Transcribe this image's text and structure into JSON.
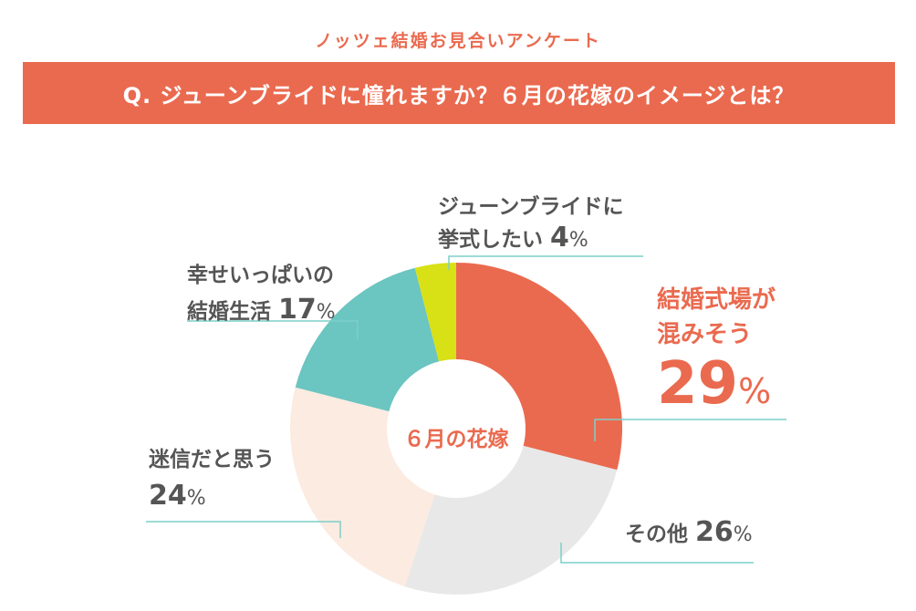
{
  "header": {
    "survey_title": "ノッツェ結婚お見合いアンケート",
    "question": "Q. ジューンブライドに憧れますか？６月の花嫁のイメージとは？"
  },
  "chart_data": {
    "type": "pie",
    "donut": true,
    "center_label": "６月の花嫁",
    "start": "top, clockwise",
    "slices": [
      {
        "label": "結婚式場が混みそう",
        "value": 29,
        "color": "#ea6a4f",
        "highlight": true
      },
      {
        "label": "その他",
        "value": 26,
        "color": "#e8e8e8"
      },
      {
        "label": "迷信だと思う",
        "value": 24,
        "color": "#fcebe1"
      },
      {
        "label": "幸せいっぱいの結婚生活",
        "value": 17,
        "color": "#6bc5c0"
      },
      {
        "label": "ジューンブライドに挙式したい",
        "value": 4,
        "color": "#d8e016"
      }
    ],
    "leader_line_color": "#7ccfc9"
  },
  "labels": {
    "crowded": {
      "line1": "結婚式場が",
      "line2": "混みそう",
      "pct": "29",
      "sign": "%"
    },
    "other": {
      "text": "その他 ",
      "pct": "26",
      "sign": "%"
    },
    "superstition": {
      "line1": "迷信だと思う",
      "pct": "24",
      "sign": "%"
    },
    "happy": {
      "line1": "幸せいっぱいの",
      "line2": "結婚生活 ",
      "pct": "17",
      "sign": "%"
    },
    "june": {
      "line1": "ジューンブライドに",
      "line2": "挙式したい ",
      "pct": "4",
      "sign": "%"
    }
  }
}
